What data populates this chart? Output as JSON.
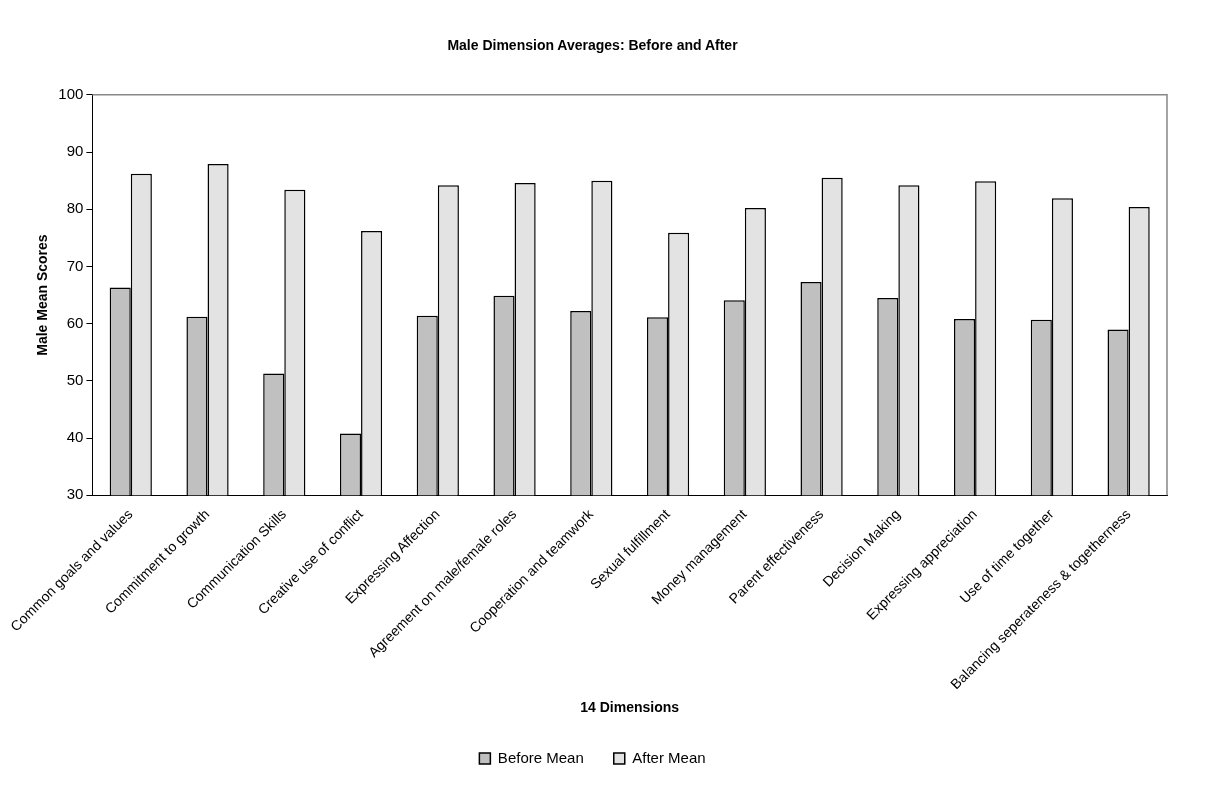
{
  "chart_data": {
    "type": "bar",
    "title": "Male Dimension Averages: Before and After",
    "xlabel": "14 Dimensions",
    "ylabel": "Male Mean Scores",
    "categories": [
      "Common goals and values",
      "Commitment to growth",
      "Communication Skills",
      "Creative use of conflict",
      "Expressing Affection",
      "Agreement on male/female roles",
      "Cooperation and teamwork",
      "Sexual fulfillment",
      "Money management",
      "Parent effectiveness",
      "Decision Making",
      "Expressing appreciation",
      "Use of time together",
      "Balancing seperateness & togetherness"
    ],
    "series": [
      {
        "name": "Before Mean",
        "color": "#c0c0c0",
        "values": [
          66.3,
          61.2,
          51.3,
          40.8,
          61.4,
          64.9,
          62.2,
          61.1,
          64.1,
          67.3,
          64.5,
          60.8,
          60.7,
          59.0
        ]
      },
      {
        "name": "After Mean",
        "color": "#e3e3e3",
        "values": [
          86.2,
          87.9,
          83.4,
          76.2,
          84.2,
          84.6,
          85.0,
          75.9,
          80.2,
          85.5,
          84.2,
          84.9,
          81.9,
          80.4
        ]
      }
    ],
    "ylim": [
      30,
      100
    ],
    "yticks": [
      30,
      40,
      50,
      60,
      70,
      80,
      90,
      100
    ],
    "grid": false,
    "legend": "bottom"
  }
}
